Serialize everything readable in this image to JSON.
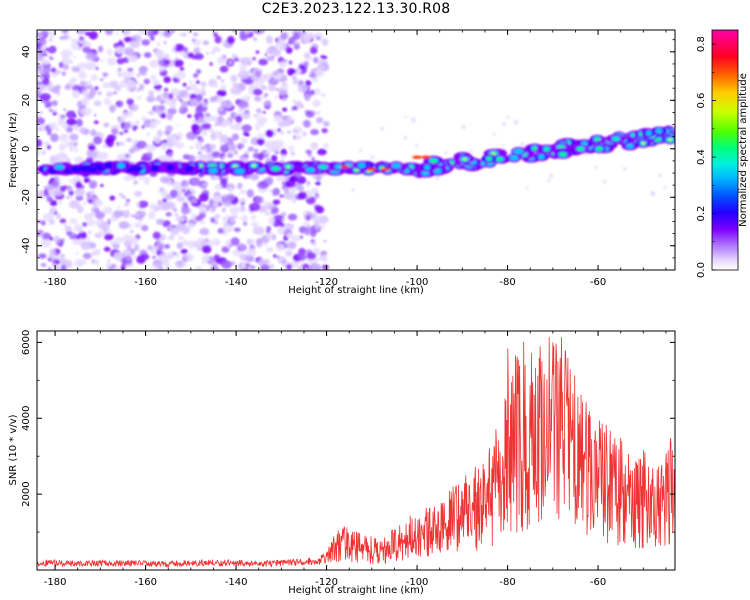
{
  "title": "C2E3.2023.122.13.30.R08",
  "spectrogram": {
    "xlabel": "Height of straight line (km)",
    "ylabel": "Frequency (Hz)",
    "xlim": [
      -184,
      -43
    ],
    "ylim": [
      -50,
      49
    ],
    "xticks": [
      -180,
      -160,
      -140,
      -120,
      -100,
      -80,
      -60
    ],
    "yticks": [
      -40,
      -20,
      0,
      20,
      40
    ],
    "colorbar": {
      "label": "Normalized spectral amplitude",
      "range": [
        0,
        0.85
      ],
      "ticks": [
        0,
        0.2,
        0.4,
        0.6,
        0.8
      ],
      "colormap": [
        "#ffffff",
        "#d8c4ff",
        "#8a00ff",
        "#2200ff",
        "#0066ff",
        "#00e6ff",
        "#00ff66",
        "#66ff00",
        "#ffee00",
        "#ff8800",
        "#ff0033",
        "#ff00aa"
      ]
    }
  },
  "chart_data": {
    "type": "line",
    "title": "",
    "xlabel": "Height of straight line (km)",
    "ylabel": "SNR (10 * v/v)",
    "xlim": [
      -184,
      -43
    ],
    "ylim": [
      0,
      6300
    ],
    "xticks": [
      -180,
      -160,
      -140,
      -120,
      -100,
      -80,
      -60
    ],
    "yticks": [
      2000,
      4000,
      6000
    ],
    "series": [
      {
        "color": "#ee3333",
        "x": [
          -184,
          -175,
          -165,
          -155,
          -145,
          -135,
          -128,
          -122,
          -120,
          -118,
          -116,
          -114,
          -112,
          -110,
          -108,
          -106,
          -104,
          -102,
          -100,
          -98,
          -96,
          -94,
          -92,
          -90,
          -88,
          -86,
          -84,
          -82,
          -80,
          -78,
          -76,
          -74,
          -72,
          -70,
          -68,
          -66,
          -64,
          -62,
          -60,
          -58,
          -56,
          -54,
          -52,
          -50,
          -48,
          -46,
          -44,
          -43
        ],
        "y": [
          200,
          180,
          190,
          170,
          200,
          180,
          200,
          250,
          350,
          700,
          800,
          700,
          650,
          600,
          500,
          700,
          800,
          1000,
          900,
          1100,
          1200,
          1300,
          1500,
          1600,
          1800,
          2000,
          2300,
          2600,
          3500,
          3800,
          3400,
          4200,
          4000,
          4300,
          4500,
          3600,
          3300,
          2800,
          3000,
          2600,
          2400,
          2500,
          2000,
          2200,
          1800,
          2000,
          2400,
          2000
        ]
      }
    ]
  }
}
